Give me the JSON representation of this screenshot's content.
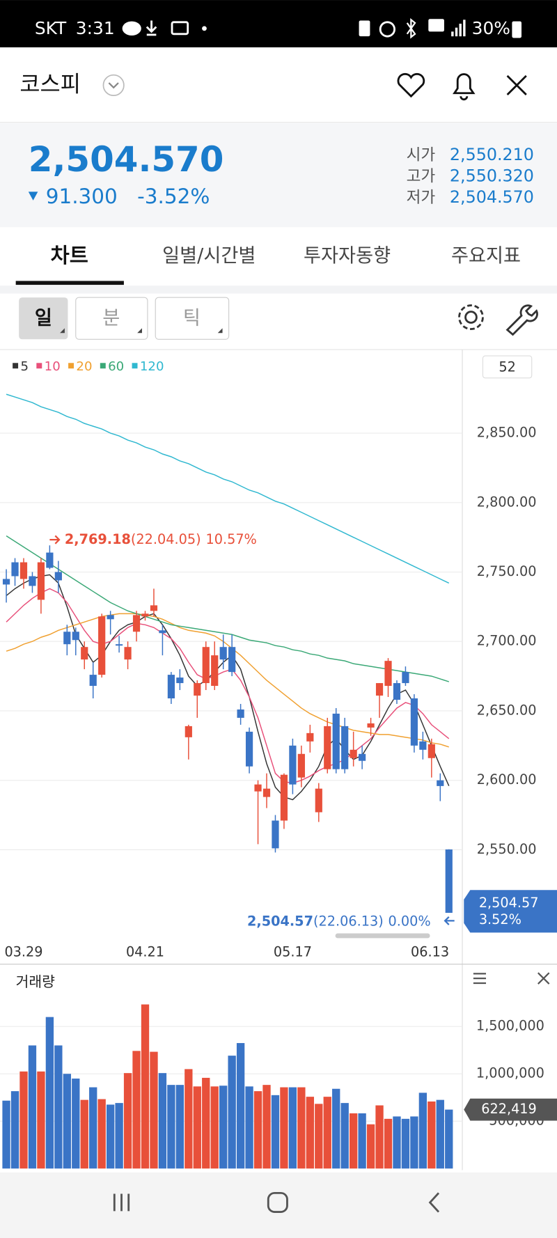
{
  "status_bar": {
    "carrier": "SKT",
    "time": "3:31",
    "battery": "30%"
  },
  "header": {
    "title": "코스피"
  },
  "quote": {
    "price": "2,504.570",
    "change": "91.300",
    "change_pct": "-3.52%",
    "open_label": "시가",
    "open": "2,550.210",
    "high_label": "고가",
    "high": "2,550.320",
    "low_label": "저가",
    "low": "2,504.570"
  },
  "tabs": [
    "차트",
    "일별/시간별",
    "투자자동향",
    "주요지표"
  ],
  "period_buttons": [
    "일",
    "분",
    "틱"
  ],
  "visible_count": 52,
  "chart_data": [
    {
      "type": "candlestick",
      "categories": [
        null,
        null,
        "03.29",
        null,
        null,
        null,
        null,
        null,
        null,
        null,
        null,
        null,
        null,
        null,
        null,
        null,
        "04.21",
        null,
        null,
        null,
        null,
        null,
        null,
        null,
        null,
        null,
        null,
        null,
        null,
        null,
        null,
        null,
        null,
        "05.17",
        null,
        null,
        null,
        null,
        null,
        null,
        null,
        null,
        null,
        null,
        null,
        null,
        null,
        null,
        null,
        null,
        null,
        "06.13"
      ],
      "open": [
        2745,
        2757,
        2745,
        2747,
        2730,
        2764,
        2750,
        2707,
        2707,
        2687,
        2676,
        2676,
        2719,
        2698,
        2687,
        2707,
        2718,
        2722,
        2708,
        2676,
        2674,
        2631,
        2661,
        2670,
        2668,
        2696,
        2696,
        2651,
        2635,
        2592,
        2588,
        2571,
        2571,
        2625,
        2602,
        2628,
        2577,
        2608,
        2648,
        2639,
        2616,
        2619,
        2638,
        2661,
        2668,
        2670,
        2678,
        2659,
        2628,
        2616,
        2600,
        2550.21
      ],
      "high": [
        2752,
        2760,
        2760,
        2750,
        2760,
        2769.18,
        2758,
        2712,
        2710,
        2700,
        2685,
        2720,
        2722,
        2704,
        2700,
        2722,
        2722,
        2738,
        2712,
        2678,
        2680,
        2640,
        2672,
        2700,
        2700,
        2705,
        2705,
        2655,
        2638,
        2600,
        2605,
        2575,
        2605,
        2630,
        2625,
        2640,
        2598,
        2645,
        2652,
        2645,
        2635,
        2625,
        2645,
        2670,
        2688,
        2672,
        2682,
        2662,
        2635,
        2630,
        2605,
        2550.32
      ],
      "low": [
        2728,
        2740,
        2738,
        2735,
        2720,
        2752,
        2735,
        2690,
        2690,
        2680,
        2659,
        2674,
        2705,
        2692,
        2680,
        2700,
        2715,
        2718,
        2690,
        2655,
        2665,
        2615,
        2645,
        2665,
        2665,
        2680,
        2675,
        2640,
        2605,
        2554,
        2580,
        2548,
        2565,
        2590,
        2595,
        2620,
        2570,
        2605,
        2605,
        2605,
        2610,
        2608,
        2632,
        2645,
        2660,
        2655,
        2668,
        2620,
        2615,
        2602,
        2585,
        2504.57
      ],
      "close": [
        2741,
        2747,
        2757,
        2740,
        2757,
        2753,
        2744,
        2698,
        2701,
        2696,
        2668,
        2718,
        2716,
        2697,
        2696,
        2719,
        2720,
        2726,
        2706,
        2659,
        2670,
        2639,
        2670,
        2696,
        2690,
        2687,
        2678,
        2645,
        2610,
        2597,
        2594,
        2551,
        2604,
        2597,
        2619,
        2634,
        2594,
        2639,
        2608,
        2608,
        2622,
        2614,
        2641,
        2670,
        2686,
        2658,
        2670,
        2625,
        2622,
        2626,
        2595.87,
        2504.57
      ],
      "up_color": "#e8503a",
      "down_color": "#3a74c6",
      "series": [
        {
          "name": "5",
          "color": "#333333",
          "values": [
            2733,
            2738,
            2742,
            2745,
            2747,
            2748,
            2742,
            2725,
            2705,
            2695,
            2685,
            2690,
            2700,
            2708,
            2712,
            2714,
            2718,
            2720,
            2712,
            2702,
            2690,
            2675,
            2668,
            2672,
            2678,
            2685,
            2690,
            2680,
            2660,
            2635,
            2612,
            2595,
            2588,
            2586,
            2592,
            2600,
            2610,
            2625,
            2630,
            2622,
            2615,
            2618,
            2628,
            2640,
            2652,
            2662,
            2665,
            2655,
            2640,
            2625,
            2610,
            2596
          ]
        },
        {
          "name": "10",
          "color": "#e8507a",
          "values": [
            2714,
            2720,
            2726,
            2731,
            2735,
            2738,
            2735,
            2728,
            2718,
            2708,
            2700,
            2698,
            2700,
            2705,
            2710,
            2713,
            2712,
            2710,
            2706,
            2702,
            2695,
            2685,
            2676,
            2673,
            2675,
            2678,
            2680,
            2672,
            2660,
            2645,
            2625,
            2605,
            2599,
            2598,
            2600,
            2603,
            2607,
            2610,
            2612,
            2615,
            2620,
            2625,
            2630,
            2638,
            2645,
            2652,
            2656,
            2654,
            2648,
            2640,
            2635,
            2630
          ]
        },
        {
          "name": "20",
          "color": "#f0a030",
          "values": [
            2693,
            2695,
            2698,
            2700,
            2703,
            2705,
            2708,
            2710,
            2712,
            2714,
            2716,
            2718,
            2719,
            2720,
            2720,
            2720,
            2719,
            2718,
            2716,
            2713,
            2710,
            2708,
            2707,
            2706,
            2704,
            2700,
            2695,
            2690,
            2684,
            2678,
            2672,
            2667,
            2662,
            2657,
            2652,
            2648,
            2645,
            2642,
            2640,
            2638,
            2636,
            2635,
            2634,
            2633,
            2633,
            2632,
            2631,
            2630,
            2629,
            2627,
            2626,
            2624
          ]
        },
        {
          "name": "60",
          "color": "#3aa876",
          "values": [
            2776,
            2772,
            2768,
            2764,
            2760,
            2756,
            2752,
            2748,
            2744,
            2740,
            2736,
            2732,
            2728,
            2725,
            2722,
            2720,
            2718,
            2716,
            2714,
            2712,
            2711,
            2710,
            2709,
            2708,
            2707,
            2706,
            2705,
            2703,
            2701,
            2700,
            2699,
            2697,
            2696,
            2694,
            2693,
            2691,
            2690,
            2688,
            2687,
            2686,
            2684,
            2683,
            2682,
            2681,
            2680,
            2679,
            2678,
            2677,
            2676,
            2675,
            2673,
            2671
          ]
        },
        {
          "name": "120",
          "color": "#30b8d0",
          "values": [
            2878,
            2876,
            2874,
            2872,
            2869,
            2867,
            2865,
            2862,
            2860,
            2857,
            2855,
            2853,
            2850,
            2848,
            2845,
            2843,
            2840,
            2838,
            2835,
            2833,
            2830,
            2828,
            2825,
            2822,
            2820,
            2817,
            2815,
            2812,
            2809,
            2807,
            2804,
            2801,
            2799,
            2796,
            2793,
            2790,
            2787,
            2784,
            2781,
            2778,
            2775,
            2772,
            2769,
            2766,
            2763,
            2760,
            2757,
            2754,
            2751,
            2748,
            2745,
            2742
          ]
        }
      ],
      "ylim": [
        2488.6,
        2910.2
      ],
      "yticks": [
        {
          "value": 2550,
          "label": "2,550.00"
        },
        {
          "value": 2600,
          "label": "2,600.00"
        },
        {
          "value": 2650,
          "label": "2,650.00"
        },
        {
          "value": 2700,
          "label": "2,700.00"
        },
        {
          "value": 2750,
          "label": "2,750.00"
        },
        {
          "value": 2800,
          "label": "2,800.00"
        },
        {
          "value": 2850,
          "label": "2,850.00"
        }
      ],
      "grid": true,
      "high_note": {
        "price": "2,769.18",
        "date": "(22.04.05)",
        "pct": "10.57%"
      },
      "low_note": {
        "price": "2,504.57",
        "date": "(22.06.13)",
        "pct": "0.00%"
      },
      "last_badge": {
        "price": "2,504.57",
        "pct": "3.52%"
      }
    },
    {
      "type": "bar",
      "title": "거래량",
      "values": [
        717000,
        817000,
        1025000,
        1300000,
        1025000,
        1600000,
        1300000,
        1000000,
        950000,
        725000,
        858000,
        733000,
        675000,
        692000,
        1008000,
        1242000,
        1733000,
        1233000,
        1008000,
        883000,
        883000,
        1050000,
        867000,
        958000,
        867000,
        875000,
        1192000,
        1325000,
        867000,
        817000,
        883000,
        775000,
        858000,
        858000,
        858000,
        758000,
        683000,
        758000,
        842000,
        692000,
        583000,
        583000,
        467000,
        667000,
        525000,
        550000,
        525000,
        550000,
        800000,
        708000,
        725000,
        622419
      ],
      "ylim": [
        0,
        2158000
      ],
      "yticks": [
        {
          "value": 500000,
          "label": "500,000"
        },
        {
          "value": 1000000,
          "label": "1,000,000"
        },
        {
          "value": 1500000,
          "label": "1,500,000"
        }
      ],
      "grid": true,
      "last_value_label": "622,419"
    }
  ]
}
